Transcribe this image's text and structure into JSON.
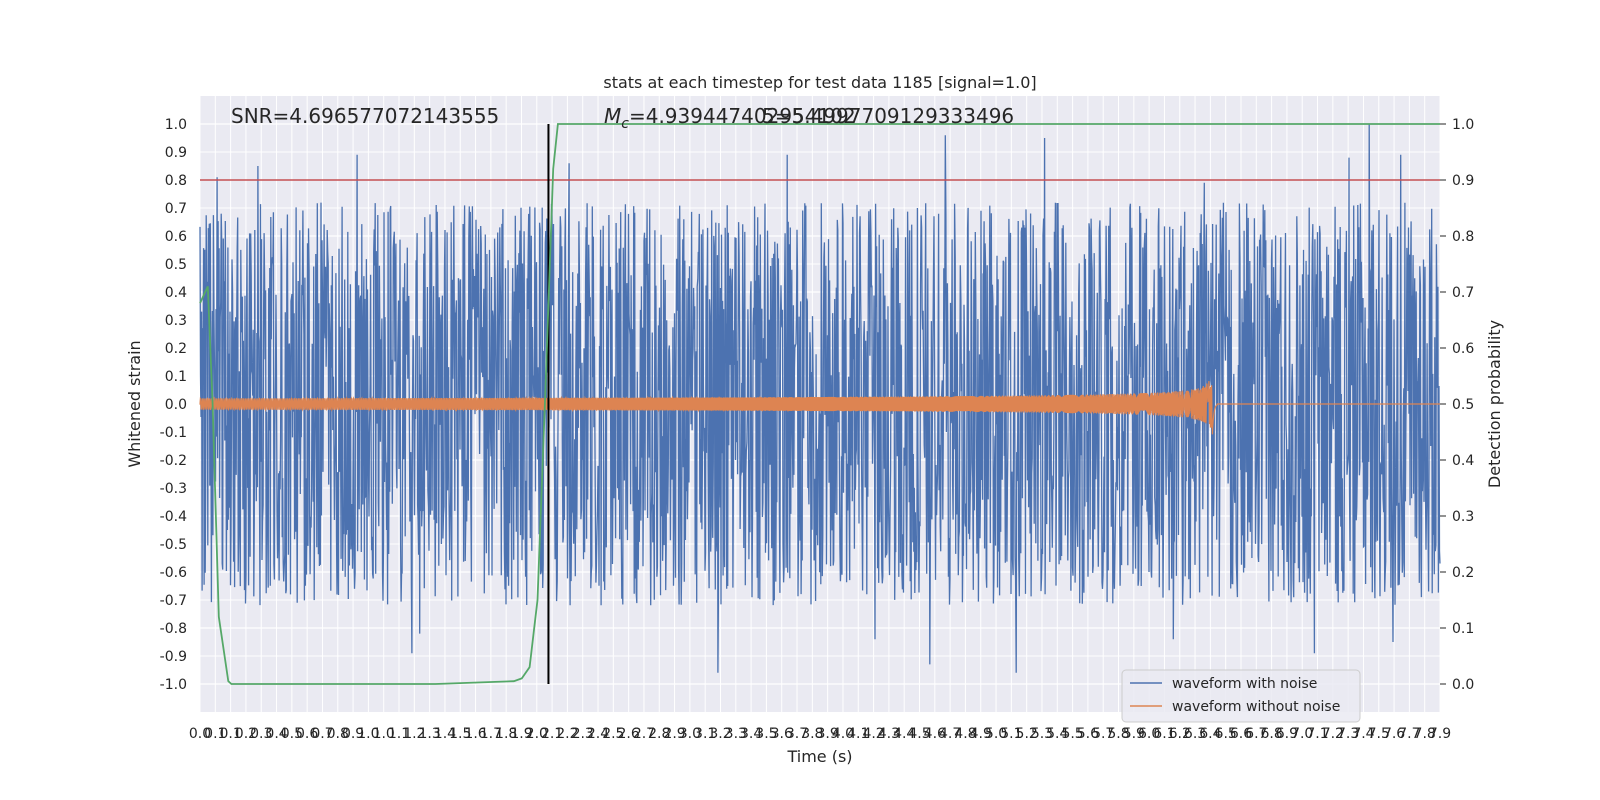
{
  "chart_data": {
    "type": "line",
    "title": "stats at each timestep for test data 1185 [signal=1.0]",
    "xlabel": "Time (s)",
    "ylabel_left": "Whitened strain",
    "ylabel_right": "Detection probability",
    "xlim": [
      0.0,
      7.9
    ],
    "ylim_left": [
      -1.08,
      1.1
    ],
    "ylim_right": [
      -0.05,
      1.05
    ],
    "x_ticks": [
      "0.0",
      "0.1",
      "0.1",
      "0.2",
      "0.3",
      "0.4",
      "0.5",
      "0.6",
      "0.7",
      "0.8",
      "0.9",
      "1.0",
      "1.0",
      "1.1",
      "1.2",
      "1.3",
      "1.4",
      "1.5",
      "1.6",
      "1.7",
      "1.8",
      "1.9",
      "2.0",
      "2.1",
      "2.2",
      "2.3",
      "2.4",
      "2.5",
      "2.6",
      "2.7",
      "2.8",
      "2.9",
      "3.0",
      "3.1",
      "3.2",
      "3.3",
      "3.4",
      "3.5",
      "3.6",
      "3.7",
      "3.8",
      "3.9",
      "4.0",
      "4.1",
      "4.2",
      "4.3",
      "4.4",
      "4.5",
      "4.6",
      "4.7",
      "4.8",
      "4.9",
      "5.0",
      "5.1",
      "5.2",
      "5.3",
      "5.4",
      "5.5",
      "5.6",
      "5.7",
      "5.8",
      "5.9",
      "6.0",
      "6.1",
      "6.2",
      "6.3",
      "6.4",
      "6.5",
      "6.6",
      "6.7",
      "6.8",
      "6.9",
      "7.0",
      "7.1",
      "7.2",
      "7.3",
      "7.4",
      "7.5",
      "7.6",
      "7.7",
      "7.8",
      "7.9"
    ],
    "y_ticks_left": [
      "1.0",
      "0.9",
      "0.8",
      "0.7",
      "0.6",
      "0.5",
      "0.4",
      "0.3",
      "0.2",
      "0.1",
      "0.0",
      "-0.1",
      "-0.2",
      "-0.3",
      "-0.4",
      "-0.5",
      "-0.6",
      "-0.7",
      "-0.8",
      "-0.9",
      "-1.0"
    ],
    "y_ticks_right": [
      "1.0",
      "0.9",
      "0.8",
      "0.7",
      "0.6",
      "0.5",
      "0.4",
      "0.3",
      "0.2",
      "0.1",
      "0.0"
    ],
    "annotations": {
      "snr": "SNR=4.696577072143555",
      "mc_symbol": "M",
      "mc_sub": "c",
      "mc_value": "=4.939447402954102",
      "overlap_text": "5=5.4997709129333496"
    },
    "threshold_left": 0.8,
    "threshold_right": 0.5,
    "vline_x": 2.22,
    "series": [
      {
        "name": "waveform with noise",
        "color": "#4c72b0",
        "envelope_max": 1.0,
        "notable_peaks": [
          [
            0.11,
            0.81
          ],
          [
            0.37,
            0.85
          ],
          [
            1.0,
            0.89
          ],
          [
            2.35,
            0.86
          ],
          [
            3.74,
            0.89
          ],
          [
            4.75,
            0.96
          ],
          [
            5.38,
            0.95
          ],
          [
            6.4,
            0.79
          ],
          [
            7.32,
            0.88
          ],
          [
            7.45,
            1.0
          ],
          [
            7.65,
            0.89
          ]
        ],
        "notable_troughs": [
          [
            1.35,
            -0.89
          ],
          [
            1.4,
            -0.82
          ],
          [
            3.3,
            -0.96
          ],
          [
            4.3,
            -0.84
          ],
          [
            4.65,
            -0.93
          ],
          [
            5.2,
            -0.96
          ],
          [
            6.2,
            -0.84
          ],
          [
            7.1,
            -0.89
          ],
          [
            7.6,
            -0.85
          ]
        ]
      },
      {
        "name": "waveform without noise",
        "color": "#dd8452",
        "start_amplitude": 0.02,
        "merger_time": 6.45,
        "merger_peak": 0.13,
        "merger_trough": -0.11
      },
      {
        "name": "Detection probability",
        "color": "#55a868",
        "axis": "right",
        "x": [
          0.0,
          0.05,
          0.08,
          0.12,
          0.18,
          0.2,
          0.5,
          1.0,
          1.5,
          2.0,
          2.05,
          2.1,
          2.15,
          2.2,
          2.25,
          2.28,
          7.9
        ],
        "y": [
          0.68,
          0.71,
          0.5,
          0.12,
          0.005,
          0.0,
          0.0,
          0.0,
          0.0,
          0.005,
          0.01,
          0.03,
          0.15,
          0.52,
          0.92,
          1.0,
          1.0
        ]
      }
    ],
    "legend": {
      "position": "lower-right",
      "entries": [
        {
          "label": "waveform with noise",
          "color": "#4c72b0"
        },
        {
          "label": "waveform without noise",
          "color": "#dd8452"
        }
      ]
    },
    "colors": {
      "background": "#eaeaf2",
      "grid": "#ffffff",
      "threshold": "#c44e52",
      "vline": "#000000"
    }
  }
}
